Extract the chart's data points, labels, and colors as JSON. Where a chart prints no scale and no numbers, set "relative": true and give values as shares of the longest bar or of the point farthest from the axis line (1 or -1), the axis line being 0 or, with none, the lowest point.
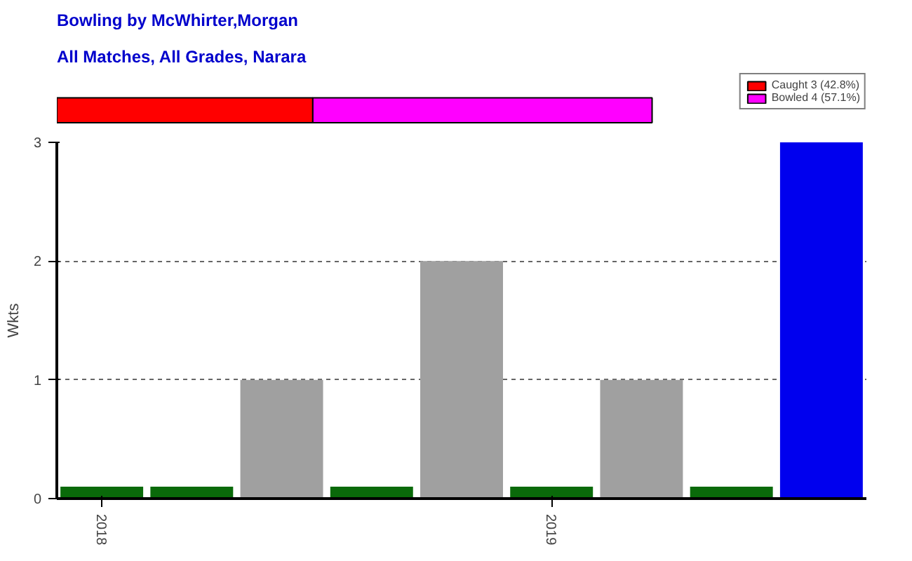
{
  "chart_data": [
    {
      "type": "bar",
      "title": "Bowling by McWhirter,Morgan",
      "subtitle": "All Matches, All Grades, Narara",
      "orientation": "horizontal",
      "stacked": true,
      "relative": true,
      "categories": [
        null
      ],
      "legend": "top right",
      "series": [
        {
          "name": "Caught 3 (42.8%)",
          "color": "#ff0000",
          "values": [
            0.43
          ]
        },
        {
          "name": "Bowled 4 (57.1%)",
          "color": "#ff00ff",
          "values": [
            0.57
          ]
        }
      ]
    },
    {
      "type": "bar",
      "ylabel": "Wkts",
      "categories": [
        "2018",
        null,
        null,
        null,
        null,
        "2019",
        null,
        null,
        null
      ],
      "values": [
        0.1,
        0.1,
        1,
        0.1,
        2,
        0.1,
        1,
        0.1,
        3
      ],
      "colors": [
        "#0a6a0a",
        "#0a6a0a",
        "#a0a0a0",
        "#0a6a0a",
        "#a0a0a0",
        "#0a6a0a",
        "#a0a0a0",
        "#0a6a0a",
        "#0000ee"
      ],
      "ylim": [
        0,
        3
      ],
      "yticks": [
        0,
        1,
        2,
        3
      ],
      "grid": "y"
    }
  ]
}
